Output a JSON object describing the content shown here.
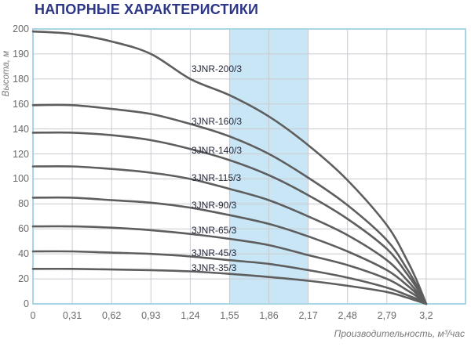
{
  "page": {
    "title": "НАПОРНЫЕ ХАРАКТЕРИСТИКИ"
  },
  "chart_data": {
    "type": "line",
    "title": "НАПОРНЫЕ ХАРАКТЕРИСТИКИ",
    "xlabel": "Производительность, м³/час",
    "ylabel": "Высота, м",
    "x_tick_labels": [
      "0",
      "0,31",
      "0,62",
      "0,93",
      "1,24",
      "1,55",
      "1,86",
      "2,17",
      "2,48",
      "2,79",
      "3,2"
    ],
    "x_tick_values": [
      0,
      0.31,
      0.62,
      0.93,
      1.24,
      1.55,
      1.86,
      2.17,
      2.48,
      2.79,
      3.2
    ],
    "y_tick_labels": [
      "200",
      "190",
      "180",
      "160",
      "140",
      "120",
      "100",
      "80",
      "60",
      "40",
      "20",
      "0"
    ],
    "y_tick_values": [
      200,
      190,
      180,
      160,
      140,
      120,
      100,
      80,
      60,
      40,
      20,
      0
    ],
    "grid": true,
    "x_axis_extra_columns": 1,
    "legend_position": "inline-labels",
    "highlight_band": {
      "x_from": 1.55,
      "x_to": 2.17
    },
    "x": [
      0,
      0.31,
      0.62,
      0.93,
      1.24,
      1.55,
      1.86,
      2.17,
      2.48,
      2.79,
      3.0,
      3.1,
      3.2
    ],
    "series": [
      {
        "name": "3JNR-200/3",
        "values": [
          199,
          198,
          195,
          190,
          180,
          167,
          150,
          127,
          99,
          63,
          35,
          19,
          0
        ],
        "label_h": 184
      },
      {
        "name": "3JNR-160/3",
        "values": [
          159,
          159,
          156,
          152,
          144,
          134,
          120,
          101,
          79,
          51,
          28,
          15,
          0
        ],
        "label_h": 146
      },
      {
        "name": "3JNR-140/3",
        "values": [
          137,
          137,
          135,
          131,
          124,
          115,
          103,
          87,
          68,
          44,
          24,
          13,
          0
        ],
        "label_h": 123
      },
      {
        "name": "3JNR-115/3",
        "values": [
          110,
          110,
          108,
          105,
          100,
          92,
          83,
          70,
          55,
          35,
          19,
          10,
          0
        ],
        "label_h": 101
      },
      {
        "name": "3JNR-90/3",
        "values": [
          85,
          85,
          83,
          81,
          77,
          71,
          64,
          54,
          42,
          27,
          15,
          8,
          0
        ],
        "label_h": 79
      },
      {
        "name": "3JNR-65/3",
        "values": [
          62,
          62,
          61,
          59,
          56,
          52,
          47,
          39,
          31,
          20,
          11,
          6,
          0
        ],
        "label_h": 59
      },
      {
        "name": "3JNR-45/3",
        "values": [
          42,
          42,
          41,
          40,
          38,
          35,
          32,
          27,
          21,
          13,
          7,
          4,
          0
        ],
        "label_h": 41
      },
      {
        "name": "3JNR-35/3",
        "values": [
          28,
          28,
          27.5,
          27,
          26,
          24,
          21.5,
          18.5,
          14.5,
          9.5,
          5,
          2.5,
          0
        ],
        "label_h": 29
      }
    ]
  },
  "colors": {
    "title": "#2c3687",
    "curve": "#5e5e5e",
    "grid": "#c8cbcf",
    "plot_border": "#a8d6e6",
    "band": "#c9e6f6",
    "tick_text": "#6a6a6a",
    "axis_title_text": "#7a7a7a",
    "curve_label_text": "#23283b",
    "background": "#ffffff"
  }
}
